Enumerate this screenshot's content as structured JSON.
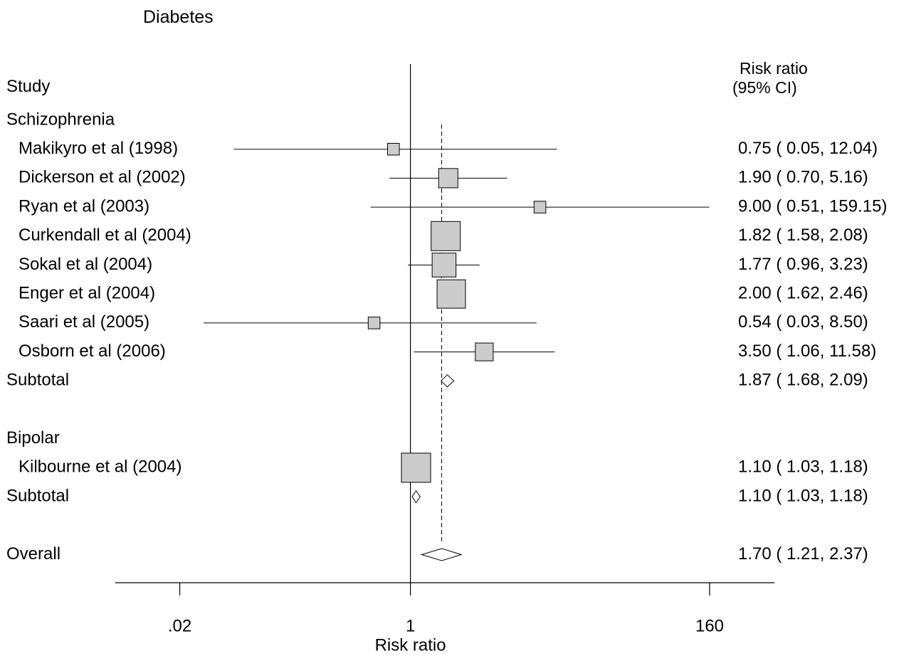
{
  "title": "Diabetes",
  "header": {
    "study_label": "Study",
    "effect_label_line1": "Risk ratio",
    "effect_label_line2": "(95% CI)"
  },
  "chart_data": {
    "type": "forest",
    "title": "Diabetes",
    "xlabel": "Risk ratio",
    "x_scale": "log",
    "xlim": [
      0.0067,
      480
    ],
    "x_ticks": [
      {
        "value": 0.02,
        "label": ".02"
      },
      {
        "value": 1,
        "label": "1"
      },
      {
        "value": 160,
        "label": "160"
      }
    ],
    "null_line": 1,
    "overall_line": 1.7,
    "colors": {
      "box_fill": "#cccccc",
      "line": "#000000"
    },
    "rows": [
      {
        "kind": "group",
        "label": "Schizophrenia"
      },
      {
        "kind": "study",
        "label": "Makikyro et al (1998)",
        "est": 0.75,
        "lo": 0.05,
        "hi": 12.04,
        "ci_text": "0.75 ( 0.05, 12.04)",
        "weight": 0.2
      },
      {
        "kind": "study",
        "label": "Dickerson et al (2002)",
        "est": 1.9,
        "lo": 0.7,
        "hi": 5.16,
        "ci_text": "1.90 ( 0.70, 5.16)",
        "weight": 1.0
      },
      {
        "kind": "study",
        "label": "Ryan et al (2003)",
        "est": 9.0,
        "lo": 0.51,
        "hi": 159.15,
        "ci_text": "9.00 ( 0.51, 159.15)",
        "weight": 0.2
      },
      {
        "kind": "study",
        "label": "Curkendall et al (2004)",
        "est": 1.82,
        "lo": 1.58,
        "hi": 2.08,
        "ci_text": "1.82 ( 1.58, 2.08)",
        "weight": 3.0
      },
      {
        "kind": "study",
        "label": "Sokal et al (2004)",
        "est": 1.77,
        "lo": 0.96,
        "hi": 3.23,
        "ci_text": "1.77 ( 0.96, 3.23)",
        "weight": 1.8
      },
      {
        "kind": "study",
        "label": "Enger et al (2004)",
        "est": 2.0,
        "lo": 1.62,
        "hi": 2.46,
        "ci_text": "2.00 ( 1.62, 2.46)",
        "weight": 2.8
      },
      {
        "kind": "study",
        "label": "Saari et al (2005)",
        "est": 0.54,
        "lo": 0.03,
        "hi": 8.5,
        "ci_text": "0.54 ( 0.03, 8.50)",
        "weight": 0.2
      },
      {
        "kind": "study",
        "label": "Osborn et al (2006)",
        "est": 3.5,
        "lo": 1.06,
        "hi": 11.58,
        "ci_text": "3.50 ( 1.06, 11.58)",
        "weight": 0.8
      },
      {
        "kind": "subtotal",
        "label": "Subtotal",
        "est": 1.87,
        "lo": 1.68,
        "hi": 2.09,
        "ci_text": "1.87 ( 1.68, 2.09)"
      },
      {
        "kind": "spacer"
      },
      {
        "kind": "group",
        "label": "Bipolar"
      },
      {
        "kind": "study",
        "label": "Kilbourne et al (2004)",
        "est": 1.1,
        "lo": 1.03,
        "hi": 1.18,
        "ci_text": "1.10 ( 1.03, 1.18)",
        "weight": 3.0
      },
      {
        "kind": "subtotal",
        "label": "Subtotal",
        "est": 1.1,
        "lo": 1.03,
        "hi": 1.18,
        "ci_text": "1.10 ( 1.03, 1.18)"
      },
      {
        "kind": "spacer"
      },
      {
        "kind": "overall",
        "label": "Overall",
        "est": 1.7,
        "lo": 1.21,
        "hi": 2.37,
        "ci_text": "1.70 ( 1.21, 2.37)"
      }
    ]
  }
}
